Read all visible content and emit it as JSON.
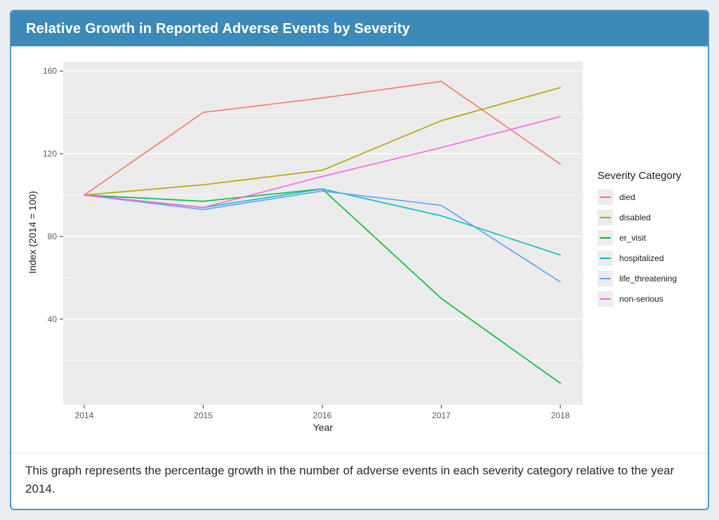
{
  "header": {
    "title": "Relative Growth in Reported Adverse Events by Severity"
  },
  "caption": {
    "text": "This graph represents the percentage growth in the number of adverse events in each severity category relative to the year 2014."
  },
  "theme": {
    "page_bg": "#e9edf1",
    "header_bg": "#3d89b8",
    "card_border": "#4c98c4",
    "panel_bg": "#ebebeb",
    "grid_color": "#ffffff",
    "axis_text_color": "#5a5a5a",
    "legend_key_bg": "#ececec"
  },
  "chart_data": {
    "type": "line",
    "title": "",
    "xlabel": "Year",
    "ylabel": "Index (2014 = 100)",
    "legend_title": "Severity Category",
    "legend_position": "right",
    "grid": true,
    "x": [
      2014,
      2015,
      2016,
      2017,
      2018
    ],
    "x_tick_labels": [
      "2014",
      "2015",
      "2016",
      "2017",
      "2018"
    ],
    "y_ticks": [
      40,
      80,
      120,
      160
    ],
    "y_minor_ticks": [
      20,
      60,
      100,
      140
    ],
    "ylim": [
      -1.5,
      164.5
    ],
    "series": [
      {
        "name": "died",
        "color": "#F8766D",
        "values": [
          100,
          140,
          147,
          155,
          115
        ]
      },
      {
        "name": "disabled",
        "color": "#B79F00",
        "values": [
          100,
          105,
          112,
          136,
          152
        ]
      },
      {
        "name": "er_visit",
        "color": "#00BA38",
        "values": [
          100,
          97,
          103,
          50,
          9
        ]
      },
      {
        "name": "hospitalized",
        "color": "#00BFC4",
        "values": [
          100,
          94,
          103,
          90,
          71
        ]
      },
      {
        "name": "life_threatening",
        "color": "#619CFF",
        "values": [
          100,
          93,
          102,
          95,
          58
        ]
      },
      {
        "name": "non-serious",
        "color": "#F564E3",
        "values": [
          100,
          94,
          109,
          123,
          138
        ]
      }
    ]
  }
}
